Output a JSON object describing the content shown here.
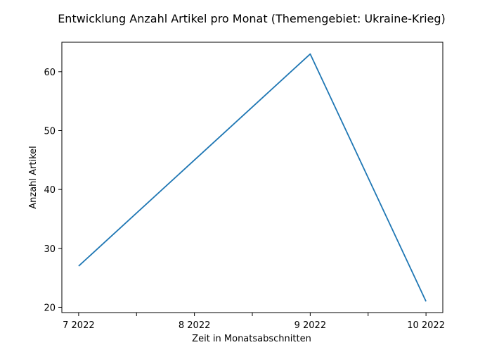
{
  "chart_data": {
    "type": "line",
    "title": "Entwicklung Anzahl Artikel pro Monat (Themengebiet: Ukraine-Krieg)",
    "xlabel": "Zeit in Monatsabschnitten",
    "ylabel": "Anzahl Artikel",
    "categories": [
      "7 2022",
      "8 2022",
      "9 2022",
      "10 2022"
    ],
    "point_x": [
      0,
      2,
      4,
      6
    ],
    "x_minor_ticks": [
      1,
      3,
      5
    ],
    "xlim": [
      -0.29,
      6.29
    ],
    "ylim": [
      19.1,
      65.0
    ],
    "yticks": [
      20,
      30,
      40,
      50,
      60
    ],
    "grid": false,
    "series": [
      {
        "values": [
          27,
          null,
          63,
          21
        ],
        "color": "#1f77b4"
      }
    ]
  }
}
